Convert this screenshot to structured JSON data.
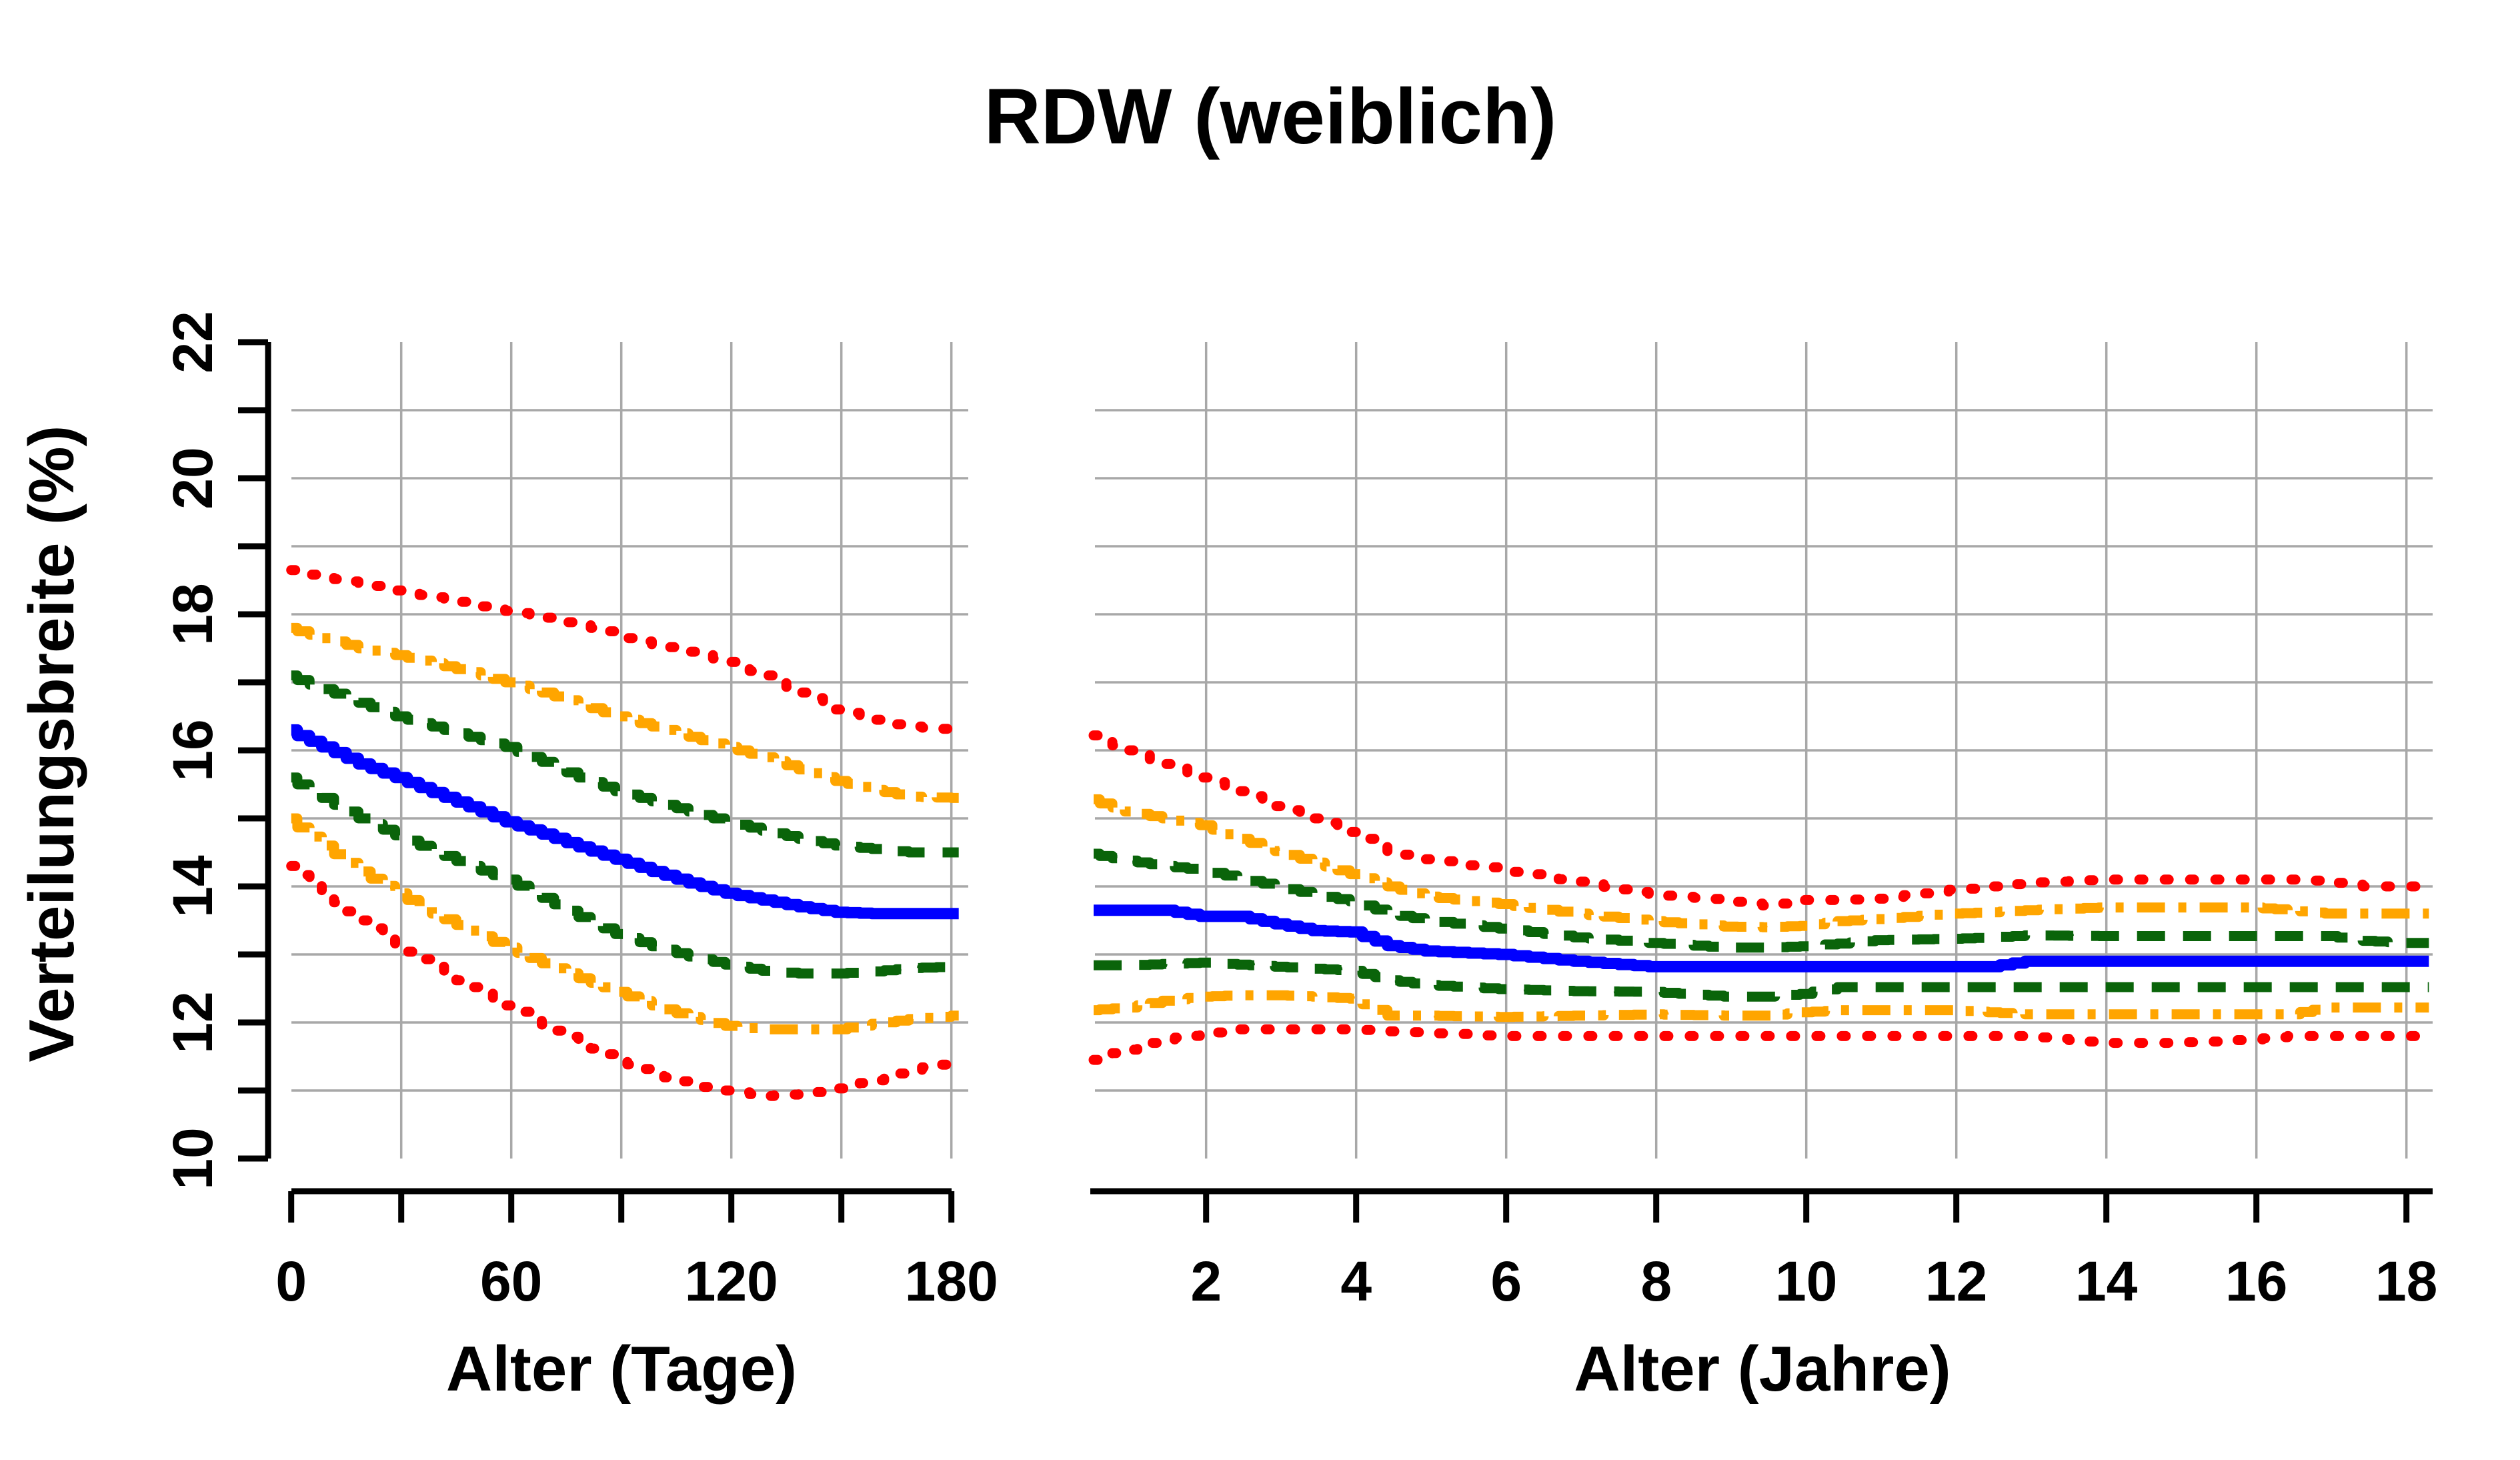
{
  "chart_data": {
    "type": "line",
    "title": "RDW (weiblich)",
    "legend": "none",
    "grid": "on",
    "y_axis": {
      "label": "Verteilungsbreite (%)",
      "range": [
        10,
        22
      ],
      "ticks": [
        10,
        11,
        12,
        13,
        14,
        15,
        16,
        17,
        18,
        19,
        20,
        21,
        22
      ],
      "labeled_ticks": [
        10,
        12,
        14,
        16,
        18,
        20,
        22
      ],
      "tick_labels": [
        "10",
        "12",
        "14",
        "16",
        "18",
        "20",
        "22"
      ],
      "gridlines": [
        11,
        12,
        13,
        14,
        15,
        16,
        17,
        18,
        19,
        20,
        21
      ]
    },
    "colors": {
      "red": "#FF0000",
      "orange": "#FFA500",
      "green": "#0A640A",
      "blue": "#0000FF",
      "gridline": "#A8A8A8",
      "axis": "#000000"
    },
    "line_styles": {
      "red": {
        "dasharray": "6 32",
        "linecap": "round",
        "width": 15
      },
      "orange": {
        "dasharray": "42 20 12 20",
        "linecap": "butt",
        "width": 15
      },
      "green": {
        "dasharray": "42 27",
        "linecap": "butt",
        "width": 15
      },
      "blue": {
        "dasharray": "none",
        "linecap": "butt",
        "width": 17
      }
    },
    "panels": [
      {
        "id": "left",
        "x_label": "Alter (Tage)",
        "x_unit": "Tage",
        "x_range": [
          0,
          182
        ],
        "x_ticks": [
          0,
          30,
          60,
          90,
          120,
          150,
          180
        ],
        "x_labeled_ticks": [
          0,
          60,
          120,
          180
        ],
        "x_tick_labels": [
          "0",
          "60",
          "120",
          "180"
        ],
        "x_gridlines": [
          30,
          60,
          90,
          120,
          150,
          180
        ],
        "x": [
          0,
          10,
          20,
          30,
          40,
          50,
          60,
          70,
          80,
          90,
          100,
          110,
          120,
          130,
          140,
          150,
          160,
          170,
          182
        ],
        "series": [
          {
            "name": "upper-red-dotted",
            "style": "red",
            "y": [
              18.65,
              18.55,
              18.45,
              18.35,
              18.25,
              18.15,
              18.05,
              17.95,
              17.85,
              17.7,
              17.55,
              17.45,
              17.3,
              17.1,
              16.85,
              16.6,
              16.45,
              16.35,
              16.3
            ]
          },
          {
            "name": "upper-orange-dashdot",
            "style": "orange",
            "y": [
              17.8,
              17.65,
              17.5,
              17.4,
              17.28,
              17.15,
              17.0,
              16.85,
              16.68,
              16.5,
              16.35,
              16.2,
              16.05,
              15.9,
              15.72,
              15.55,
              15.42,
              15.32,
              15.3
            ]
          },
          {
            "name": "upper-green-dashed",
            "style": "green",
            "y": [
              17.1,
              16.9,
              16.7,
              16.5,
              16.35,
              16.2,
              16.05,
              15.83,
              15.6,
              15.4,
              15.25,
              15.1,
              14.95,
              14.82,
              14.7,
              14.6,
              14.55,
              14.5,
              14.5
            ]
          },
          {
            "name": "median-blue-solid",
            "style": "blue",
            "y": [
              16.3,
              16.05,
              15.8,
              15.6,
              15.38,
              15.17,
              14.95,
              14.77,
              14.58,
              14.4,
              14.22,
              14.05,
              13.9,
              13.8,
              13.7,
              13.62,
              13.6,
              13.6,
              13.6
            ]
          },
          {
            "name": "lower-green-dashed",
            "style": "green",
            "y": [
              15.6,
              15.3,
              15.0,
              14.75,
              14.52,
              14.3,
              14.1,
              13.83,
              13.55,
              13.3,
              13.12,
              12.97,
              12.85,
              12.76,
              12.72,
              12.72,
              12.75,
              12.8,
              12.82
            ]
          },
          {
            "name": "lower-orange-dashdot",
            "style": "orange",
            "y": [
              15.0,
              14.6,
              14.22,
              13.9,
              13.6,
              13.35,
              13.1,
              12.87,
              12.65,
              12.45,
              12.25,
              12.08,
              11.95,
              11.9,
              11.9,
              11.9,
              11.98,
              12.05,
              12.1
            ]
          },
          {
            "name": "lower-red-dotted",
            "style": "red",
            "y": [
              14.3,
              13.9,
              13.5,
              13.15,
              12.82,
              12.52,
              12.25,
              11.97,
              11.7,
              11.45,
              11.25,
              11.08,
              11.0,
              10.92,
              10.95,
              11.03,
              11.15,
              11.3,
              11.42
            ]
          }
        ]
      },
      {
        "id": "right",
        "x_label": "Alter (Jahre)",
        "x_unit": "Jahre",
        "x_range": [
          0.5,
          18.3
        ],
        "x_ticks": [
          2,
          4,
          6,
          8,
          10,
          12,
          14,
          16,
          18
        ],
        "x_labeled_ticks": [
          2,
          4,
          6,
          8,
          10,
          12,
          14,
          16,
          18
        ],
        "x_tick_labels": [
          "2",
          "4",
          "6",
          "8",
          "10",
          "12",
          "14",
          "16",
          "18"
        ],
        "x_gridlines": [
          2,
          4,
          6,
          8,
          10,
          12,
          14,
          16,
          18
        ],
        "x": [
          0.5,
          1,
          1.5,
          2,
          2.5,
          3,
          3.5,
          4,
          4.5,
          5,
          6,
          7,
          8,
          9,
          9.5,
          10,
          10.5,
          11,
          12,
          12.5,
          13,
          14,
          15,
          16,
          16.5,
          17,
          17.5,
          18,
          18.3
        ],
        "series": [
          {
            "name": "upper-red-dotted",
            "style": "red",
            "y": [
              16.22,
              16.0,
              15.8,
              15.6,
              15.4,
              15.18,
              15.0,
              14.8,
              14.5,
              14.4,
              14.25,
              14.07,
              13.88,
              13.8,
              13.72,
              13.8,
              13.8,
              13.82,
              13.95,
              14.0,
              14.05,
              14.1,
              14.1,
              14.1,
              14.1,
              14.08,
              14.0,
              14.0,
              14.0
            ]
          },
          {
            "name": "upper-orange-dashdot",
            "style": "orange",
            "y": [
              15.28,
              15.1,
              15.0,
              14.9,
              14.7,
              14.52,
              14.35,
              14.18,
              14.0,
              13.85,
              13.74,
              13.6,
              13.49,
              13.41,
              13.4,
              13.42,
              13.49,
              13.52,
              13.6,
              13.62,
              13.65,
              13.69,
              13.69,
              13.69,
              13.65,
              13.6,
              13.6,
              13.6,
              13.6
            ]
          },
          {
            "name": "upper-green-dashed",
            "style": "green",
            "y": [
              14.48,
              14.38,
              14.3,
              14.24,
              14.12,
              14.0,
              13.88,
              13.78,
              13.6,
              13.5,
              13.38,
              13.25,
              13.17,
              13.1,
              13.1,
              13.12,
              13.16,
              13.21,
              13.23,
              13.25,
              13.28,
              13.27,
              13.27,
              13.27,
              13.27,
              13.27,
              13.2,
              13.17,
              13.17
            ]
          },
          {
            "name": "median-blue-solid",
            "style": "blue",
            "y": [
              13.65,
              13.65,
              13.65,
              13.56,
              13.56,
              13.45,
              13.35,
              13.33,
              13.13,
              13.05,
              13.0,
              12.9,
              12.82,
              12.82,
              12.82,
              12.82,
              12.82,
              12.82,
              12.82,
              12.82,
              12.9,
              12.9,
              12.9,
              12.9,
              12.9,
              12.9,
              12.9,
              12.9,
              12.9
            ]
          },
          {
            "name": "lower-green-dashed",
            "style": "green",
            "y": [
              12.84,
              12.84,
              12.86,
              12.88,
              12.85,
              12.82,
              12.79,
              12.76,
              12.62,
              12.55,
              12.49,
              12.46,
              12.45,
              12.38,
              12.38,
              12.42,
              12.52,
              12.52,
              12.52,
              12.52,
              12.52,
              12.52,
              12.52,
              12.52,
              12.52,
              12.52,
              12.52,
              12.52,
              12.52
            ]
          },
          {
            "name": "lower-orange-dashdot",
            "style": "orange",
            "y": [
              12.18,
              12.22,
              12.32,
              12.38,
              12.4,
              12.4,
              12.38,
              12.35,
              12.1,
              12.1,
              12.08,
              12.1,
              12.12,
              12.1,
              12.1,
              12.15,
              12.18,
              12.18,
              12.18,
              12.15,
              12.12,
              12.12,
              12.12,
              12.12,
              12.12,
              12.22,
              12.22,
              12.22,
              12.22
            ]
          },
          {
            "name": "lower-red-dotted",
            "style": "red",
            "y": [
              11.45,
              11.6,
              11.75,
              11.83,
              11.9,
              11.9,
              11.9,
              11.9,
              11.87,
              11.85,
              11.8,
              11.8,
              11.8,
              11.8,
              11.8,
              11.8,
              11.8,
              11.8,
              11.8,
              11.8,
              11.8,
              11.7,
              11.7,
              11.75,
              11.8,
              11.8,
              11.8,
              11.8,
              11.8
            ]
          }
        ]
      }
    ]
  }
}
